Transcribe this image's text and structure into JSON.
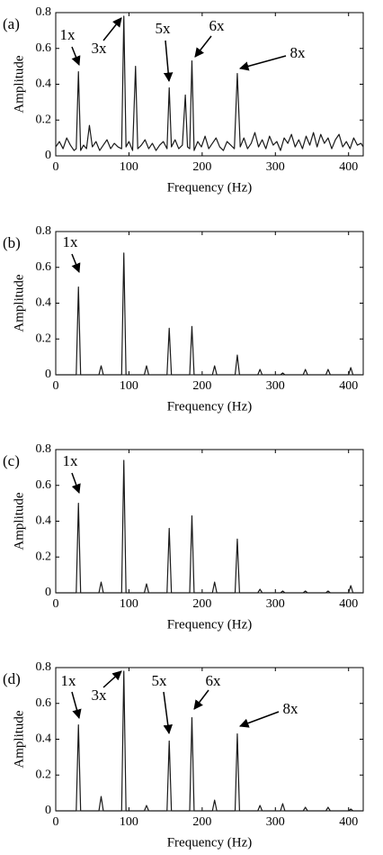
{
  "chart_data": [
    {
      "type": "line",
      "panel_label": "(a)",
      "xlabel": "Frequency (Hz)",
      "ylabel": "Amplitude",
      "x": [
        0,
        5,
        10,
        15,
        20,
        25,
        28,
        31,
        34,
        38,
        42,
        46,
        50,
        55,
        60,
        65,
        70,
        75,
        80,
        85,
        90,
        93,
        96,
        100,
        105,
        109,
        112,
        117,
        122,
        127,
        132,
        137,
        142,
        147,
        152,
        155,
        158,
        163,
        168,
        173,
        177,
        180,
        183,
        186,
        189,
        194,
        199,
        204,
        209,
        214,
        219,
        224,
        229,
        234,
        239,
        244,
        248,
        252,
        257,
        262,
        267,
        272,
        277,
        282,
        287,
        292,
        297,
        302,
        307,
        312,
        317,
        322,
        327,
        332,
        337,
        342,
        347,
        352,
        357,
        362,
        367,
        372,
        377,
        382,
        387,
        392,
        397,
        402,
        407,
        412,
        417,
        420
      ],
      "series": [
        {
          "color": "#1a1a1a",
          "values": [
            0.05,
            0.08,
            0.04,
            0.1,
            0.06,
            0.03,
            0.04,
            0.47,
            0.03,
            0.06,
            0.04,
            0.17,
            0.05,
            0.08,
            0.03,
            0.06,
            0.09,
            0.04,
            0.07,
            0.05,
            0.04,
            0.78,
            0.05,
            0.08,
            0.03,
            0.5,
            0.04,
            0.06,
            0.09,
            0.04,
            0.07,
            0.03,
            0.06,
            0.08,
            0.04,
            0.38,
            0.05,
            0.09,
            0.04,
            0.06,
            0.34,
            0.05,
            0.04,
            0.53,
            0.03,
            0.08,
            0.05,
            0.11,
            0.04,
            0.07,
            0.1,
            0.05,
            0.03,
            0.08,
            0.06,
            0.04,
            0.46,
            0.05,
            0.1,
            0.04,
            0.07,
            0.13,
            0.05,
            0.09,
            0.04,
            0.11,
            0.06,
            0.08,
            0.03,
            0.1,
            0.07,
            0.12,
            0.05,
            0.09,
            0.04,
            0.11,
            0.06,
            0.13,
            0.05,
            0.12,
            0.07,
            0.1,
            0.04,
            0.09,
            0.12,
            0.05,
            0.08,
            0.04,
            0.1,
            0.06,
            0.07,
            0.05
          ]
        }
      ],
      "xlim": [
        0,
        420
      ],
      "ylim": [
        0,
        0.8
      ],
      "xticks": [
        0,
        100,
        200,
        300,
        400
      ],
      "yticks": [
        0,
        0.2,
        0.4,
        0.6,
        0.8
      ],
      "annotations": [
        "1x",
        "3x",
        "5x",
        "6x",
        "8x"
      ]
    },
    {
      "type": "line",
      "panel_label": "(b)",
      "xlabel": "Frequency (Hz)",
      "ylabel": "Amplitude",
      "x": [
        0,
        28,
        31,
        34,
        59,
        62,
        65,
        90,
        93,
        96,
        121,
        124,
        127,
        152,
        155,
        158,
        183,
        186,
        189,
        214,
        217,
        220,
        245,
        248,
        251,
        276,
        279,
        282,
        307,
        310,
        313,
        338,
        341,
        344,
        369,
        372,
        375,
        400,
        403,
        406,
        420
      ],
      "series": [
        {
          "color": "#1a1a1a",
          "values": [
            0,
            0,
            0.49,
            0,
            0,
            0.05,
            0,
            0,
            0.68,
            0,
            0,
            0.05,
            0,
            0,
            0.26,
            0,
            0,
            0.27,
            0,
            0,
            0.05,
            0,
            0,
            0.11,
            0,
            0,
            0.03,
            0,
            0,
            0.01,
            0,
            0,
            0.03,
            0,
            0,
            0.03,
            0,
            0,
            0.04,
            0,
            0
          ]
        }
      ],
      "xlim": [
        0,
        420
      ],
      "ylim": [
        0,
        0.8
      ],
      "xticks": [
        0,
        100,
        200,
        300,
        400
      ],
      "yticks": [
        0,
        0.2,
        0.4,
        0.6,
        0.8
      ],
      "annotations": [
        "1x"
      ]
    },
    {
      "type": "line",
      "panel_label": "(c)",
      "xlabel": "Frequency (Hz)",
      "ylabel": "Amplitude",
      "x": [
        0,
        28,
        31,
        34,
        59,
        62,
        65,
        90,
        93,
        96,
        121,
        124,
        127,
        152,
        155,
        158,
        183,
        186,
        189,
        214,
        217,
        220,
        245,
        248,
        251,
        276,
        279,
        282,
        307,
        310,
        313,
        338,
        341,
        344,
        369,
        372,
        375,
        400,
        403,
        406,
        420
      ],
      "series": [
        {
          "color": "#1a1a1a",
          "values": [
            0,
            0,
            0.5,
            0,
            0,
            0.06,
            0,
            0,
            0.74,
            0,
            0,
            0.05,
            0,
            0,
            0.36,
            0,
            0,
            0.43,
            0,
            0,
            0.06,
            0,
            0,
            0.3,
            0,
            0,
            0.02,
            0,
            0,
            0.01,
            0,
            0,
            0.01,
            0,
            0,
            0.01,
            0,
            0,
            0.04,
            0,
            0
          ]
        }
      ],
      "xlim": [
        0,
        420
      ],
      "ylim": [
        0,
        0.8
      ],
      "xticks": [
        0,
        100,
        200,
        300,
        400
      ],
      "yticks": [
        0,
        0.2,
        0.4,
        0.6,
        0.8
      ],
      "annotations": [
        "1x"
      ]
    },
    {
      "type": "line",
      "panel_label": "(d)",
      "xlabel": "Frequency (Hz)",
      "ylabel": "Amplitude",
      "x": [
        0,
        28,
        31,
        34,
        59,
        62,
        65,
        90,
        93,
        96,
        121,
        124,
        127,
        152,
        155,
        158,
        183,
        186,
        189,
        214,
        217,
        220,
        245,
        248,
        251,
        276,
        279,
        282,
        307,
        310,
        313,
        338,
        341,
        344,
        369,
        372,
        375,
        400,
        403,
        406,
        420
      ],
      "series": [
        {
          "color": "#1a1a1a",
          "values": [
            0,
            0,
            0.48,
            0,
            0,
            0.08,
            0,
            0,
            0.78,
            0,
            0,
            0.03,
            0,
            0,
            0.39,
            0,
            0,
            0.52,
            0,
            0,
            0.06,
            0,
            0,
            0.43,
            0,
            0,
            0.03,
            0,
            0,
            0.04,
            0,
            0,
            0.02,
            0,
            0,
            0.02,
            0,
            0,
            0.01,
            0,
            0
          ]
        }
      ],
      "xlim": [
        0,
        420
      ],
      "ylim": [
        0,
        0.8
      ],
      "xticks": [
        0,
        100,
        200,
        300,
        400
      ],
      "yticks": [
        0,
        0.2,
        0.4,
        0.6,
        0.8
      ],
      "annotations": [
        "1x",
        "3x",
        "5x",
        "6x",
        "8x"
      ]
    }
  ]
}
